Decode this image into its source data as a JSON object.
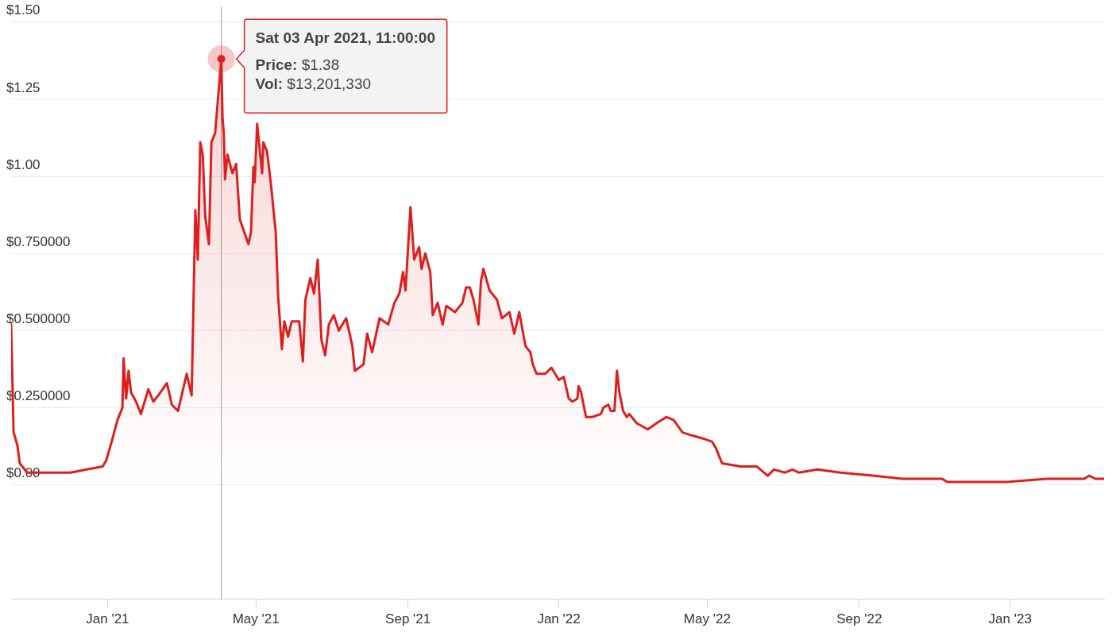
{
  "chart_data": {
    "type": "area",
    "xlim": [
      "2020-10-15",
      "2023-03-18"
    ],
    "xticks": [
      {
        "value": "2021-01-01",
        "label": "Jan '21"
      },
      {
        "value": "2021-05-01",
        "label": "May '21"
      },
      {
        "value": "2021-09-01",
        "label": "Sep '21"
      },
      {
        "value": "2022-01-01",
        "label": "Jan '22"
      },
      {
        "value": "2022-05-01",
        "label": "May '22"
      },
      {
        "value": "2022-09-01",
        "label": "Sep '22"
      },
      {
        "value": "2023-01-01",
        "label": "Jan '23"
      }
    ],
    "ylim": [
      -0.37,
      1.55
    ],
    "yticks": [
      {
        "value": 0,
        "label": "$0.00"
      },
      {
        "value": 0.25,
        "label": "$0.250000"
      },
      {
        "value": 0.5,
        "label": "$0.500000"
      },
      {
        "value": 0.75,
        "label": "$0.750000"
      },
      {
        "value": 1,
        "label": "$1.00"
      },
      {
        "value": 1.25,
        "label": "$1.25"
      },
      {
        "value": 1.5,
        "label": "$1.50"
      }
    ],
    "grid": "y",
    "legend": false,
    "marker": "none",
    "line_style": "solid",
    "ref_lines": [
      {
        "axis": "x",
        "value": "2021-04-03",
        "color": "#a0a0a0"
      }
    ],
    "annotations": [
      {
        "text": "Sat 03 Apr 2021, 11:00:00",
        "x": "2021-04-03",
        "y": 1.38
      },
      {
        "text": "Price: $1.38",
        "x": "2021-04-03",
        "y": 1.38
      },
      {
        "text": "Vol: $13,201,330",
        "x": "2021-04-03",
        "y": 1.38
      }
    ],
    "series": [
      {
        "color": "#dd1f1f",
        "x": [
          "2020-10-15",
          "2020-10-17",
          "2020-10-20",
          "2020-10-22",
          "2020-10-28",
          "2020-11-07",
          "2020-11-20",
          "2020-12-02",
          "2020-12-15",
          "2020-12-28",
          "2020-12-31",
          "2021-01-05",
          "2021-01-09",
          "2021-01-13",
          "2021-01-14",
          "2021-01-16",
          "2021-01-18",
          "2021-01-20",
          "2021-01-24",
          "2021-01-28",
          "2021-02-03",
          "2021-02-07",
          "2021-02-11",
          "2021-02-18",
          "2021-02-22",
          "2021-02-27",
          "2021-03-06",
          "2021-03-10",
          "2021-03-13",
          "2021-03-15",
          "2021-03-17",
          "2021-03-19",
          "2021-03-21",
          "2021-03-24",
          "2021-03-26",
          "2021-03-29",
          "2021-04-03",
          "2021-04-04",
          "2021-04-05",
          "2021-04-06",
          "2021-04-08",
          "2021-04-12",
          "2021-04-15",
          "2021-04-18",
          "2021-04-25",
          "2021-04-27",
          "2021-04-29",
          "2021-04-30",
          "2021-05-02",
          "2021-05-06",
          "2021-05-07",
          "2021-05-10",
          "2021-05-13",
          "2021-05-17",
          "2021-05-19",
          "2021-05-22",
          "2021-05-24",
          "2021-05-27",
          "2021-05-30",
          "2021-06-05",
          "2021-06-08",
          "2021-06-10",
          "2021-06-14",
          "2021-06-17",
          "2021-06-20",
          "2021-06-23",
          "2021-06-26",
          "2021-06-29",
          "2021-07-03",
          "2021-07-07",
          "2021-07-13",
          "2021-07-18",
          "2021-07-20",
          "2021-07-27",
          "2021-07-30",
          "2021-08-03",
          "2021-08-09",
          "2021-08-16",
          "2021-08-21",
          "2021-08-25",
          "2021-08-28",
          "2021-08-30",
          "2021-09-03",
          "2021-09-06",
          "2021-09-10",
          "2021-09-12",
          "2021-09-15",
          "2021-09-19",
          "2021-09-21",
          "2021-09-25",
          "2021-09-29",
          "2021-10-02",
          "2021-10-09",
          "2021-10-15",
          "2021-10-18",
          "2021-10-21",
          "2021-10-24",
          "2021-10-28",
          "2021-10-30",
          "2021-11-01",
          "2021-11-06",
          "2021-11-12",
          "2021-11-16",
          "2021-11-22",
          "2021-11-26",
          "2021-11-30",
          "2021-12-05",
          "2021-12-09",
          "2021-12-11",
          "2021-12-14",
          "2021-12-21",
          "2021-12-26",
          "2021-12-29",
          "2022-01-01",
          "2022-01-05",
          "2022-01-09",
          "2022-01-12",
          "2022-01-16",
          "2022-01-17",
          "2022-01-19",
          "2022-01-23",
          "2022-01-28",
          "2022-02-04",
          "2022-02-06",
          "2022-02-10",
          "2022-02-12",
          "2022-02-15",
          "2022-02-17",
          "2022-02-19",
          "2022-02-22",
          "2022-02-25",
          "2022-02-27",
          "2022-03-05",
          "2022-03-14",
          "2022-03-21",
          "2022-03-29",
          "2022-04-04",
          "2022-04-11",
          "2022-04-19",
          "2022-04-28",
          "2022-05-05",
          "2022-05-08",
          "2022-05-13",
          "2022-05-28",
          "2022-06-10",
          "2022-06-19",
          "2022-06-24",
          "2022-07-03",
          "2022-07-09",
          "2022-07-14",
          "2022-07-29",
          "2022-08-17",
          "2022-09-12",
          "2022-10-06",
          "2022-11-07",
          "2022-11-11",
          "2022-12-30",
          "2023-01-31",
          "2023-03-02",
          "2023-03-06",
          "2023-03-11",
          "2023-03-18"
        ],
        "values": [
          0.52,
          0.17,
          0.13,
          0.07,
          0.04,
          0.04,
          0.04,
          0.04,
          0.05,
          0.06,
          0.08,
          0.15,
          0.21,
          0.25,
          0.41,
          0.28,
          0.37,
          0.3,
          0.27,
          0.23,
          0.31,
          0.27,
          0.29,
          0.33,
          0.26,
          0.24,
          0.36,
          0.29,
          0.89,
          0.73,
          1.11,
          1.07,
          0.87,
          0.78,
          1.11,
          1.14,
          1.38,
          1.19,
          1.14,
          0.99,
          1.07,
          1.01,
          1.04,
          0.86,
          0.78,
          0.82,
          1.03,
          0.98,
          1.17,
          1.01,
          1.11,
          1.08,
          0.98,
          0.82,
          0.61,
          0.44,
          0.53,
          0.48,
          0.53,
          0.53,
          0.4,
          0.6,
          0.67,
          0.62,
          0.73,
          0.47,
          0.42,
          0.52,
          0.55,
          0.5,
          0.54,
          0.45,
          0.37,
          0.39,
          0.49,
          0.43,
          0.54,
          0.52,
          0.59,
          0.62,
          0.69,
          0.63,
          0.9,
          0.73,
          0.77,
          0.7,
          0.75,
          0.69,
          0.55,
          0.59,
          0.52,
          0.58,
          0.56,
          0.59,
          0.64,
          0.64,
          0.6,
          0.52,
          0.66,
          0.7,
          0.63,
          0.6,
          0.54,
          0.56,
          0.49,
          0.56,
          0.45,
          0.43,
          0.39,
          0.36,
          0.36,
          0.38,
          0.36,
          0.34,
          0.35,
          0.28,
          0.27,
          0.28,
          0.32,
          0.3,
          0.22,
          0.22,
          0.23,
          0.25,
          0.26,
          0.24,
          0.24,
          0.37,
          0.3,
          0.24,
          0.22,
          0.23,
          0.2,
          0.18,
          0.2,
          0.22,
          0.21,
          0.17,
          0.16,
          0.15,
          0.14,
          0.12,
          0.07,
          0.06,
          0.06,
          0.03,
          0.05,
          0.04,
          0.05,
          0.04,
          0.05,
          0.04,
          0.03,
          0.02,
          0.02,
          0.01,
          0.01,
          0.02,
          0.02,
          0.03,
          0.02,
          0.02
        ]
      }
    ]
  }
}
